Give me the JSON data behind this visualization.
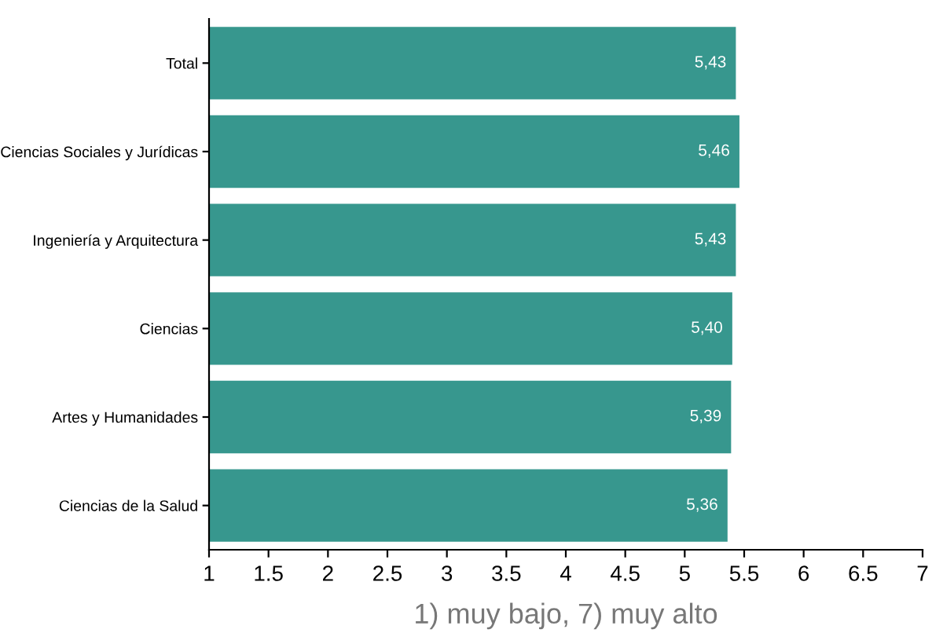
{
  "chart_data": {
    "type": "bar",
    "orientation": "horizontal",
    "xlabel": "1) muy bajo, 7) muy alto",
    "categories": [
      "Total",
      "Ciencias Sociales y Jurídicas",
      "Ingeniería y Arquitectura",
      "Ciencias",
      "Artes y Humanidades",
      "Ciencias de la Salud"
    ],
    "values": [
      5.43,
      5.46,
      5.43,
      5.4,
      5.39,
      5.36
    ],
    "value_labels": [
      "5,43",
      "5,46",
      "5,43",
      "5,40",
      "5,39",
      "5,36"
    ],
    "color": "#37978e",
    "xlim": [
      1,
      7
    ],
    "xticks": [
      1,
      1.5,
      2,
      2.5,
      3,
      3.5,
      4,
      4.5,
      5,
      5.5,
      6,
      6.5,
      7
    ],
    "grid": false,
    "legend": false
  }
}
